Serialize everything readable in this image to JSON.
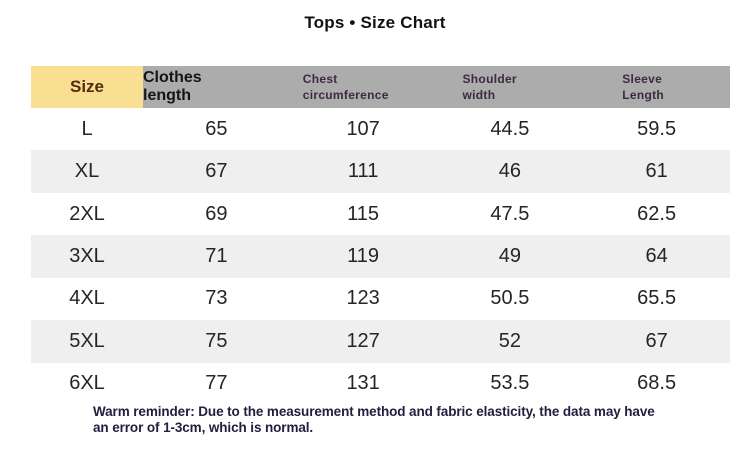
{
  "title": "Tops • Size Chart",
  "table": {
    "columns": [
      {
        "key": "size",
        "label": "Size"
      },
      {
        "key": "clothes_length",
        "label": "Clothes length"
      },
      {
        "key": "chest_circumference",
        "label": "Chest\ncircumference"
      },
      {
        "key": "shoulder_width",
        "label": "Shoulder\nwidth"
      },
      {
        "key": "sleeve_length",
        "label": "Sleeve\nLength"
      }
    ],
    "rows": [
      [
        "L",
        "65",
        "107",
        "44.5",
        "59.5"
      ],
      [
        "XL",
        "67",
        "111",
        "46",
        "61"
      ],
      [
        "2XL",
        "69",
        "115",
        "47.5",
        "62.5"
      ],
      [
        "3XL",
        "71",
        "119",
        "49",
        "64"
      ],
      [
        "4XL",
        "73",
        "123",
        "50.5",
        "65.5"
      ],
      [
        "5XL",
        "75",
        "127",
        "52",
        "67"
      ],
      [
        "6XL",
        "77",
        "131",
        "53.5",
        "68.5"
      ]
    ]
  },
  "note": {
    "line1": "Warm reminder: Due to the measurement method and fabric elasticity, the data may have",
    "line2": "an error of 1-3cm, which is normal."
  },
  "colors": {
    "header_size_bg": "#f8df92",
    "header_gray_bg": "#acacac",
    "stripe_gray": "#efefef",
    "size_header_text": "#562a0e",
    "small_header_text": "#3c2a40",
    "note_text": "#20203f"
  },
  "chart_data": {
    "type": "table",
    "title": "Tops • Size Chart",
    "columns": [
      "Size",
      "Clothes length",
      "Chest circumference",
      "Shoulder width",
      "Sleeve Length"
    ],
    "rows": [
      [
        "L",
        65,
        107,
        44.5,
        59.5
      ],
      [
        "XL",
        67,
        111,
        46,
        61
      ],
      [
        "2XL",
        69,
        115,
        47.5,
        62.5
      ],
      [
        "3XL",
        71,
        119,
        49,
        64
      ],
      [
        "4XL",
        73,
        123,
        50.5,
        65.5
      ],
      [
        "5XL",
        75,
        127,
        52,
        67
      ],
      [
        "6XL",
        77,
        131,
        53.5,
        68.5
      ]
    ],
    "footnote": "Warm reminder: Due to the measurement method and fabric elasticity, the data may have an error of 1-3cm, which is normal."
  }
}
